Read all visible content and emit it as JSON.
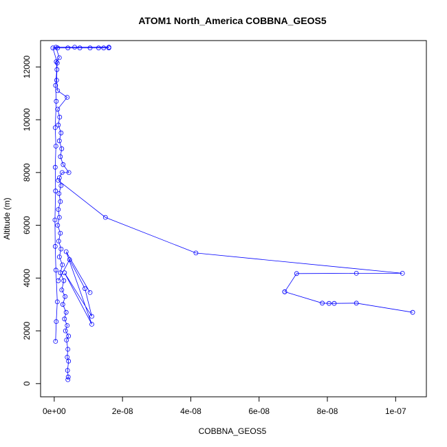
{
  "chart_data": {
    "type": "line",
    "title": "ATOM1 North_America COBBNA_GEOS5",
    "xlabel": "COBBNA_GEOS5",
    "ylabel": "Altitude (m)",
    "xlim": [
      -4e-09,
      1.09e-07
    ],
    "ylim": [
      -500,
      13000
    ],
    "x_ticks": [
      0,
      2e-08,
      4e-08,
      6e-08,
      8e-08,
      1e-07
    ],
    "x_tick_labels": [
      "0e+00",
      "2e-08",
      "4e-08",
      "6e-08",
      "8e-08",
      "1e-07"
    ],
    "y_ticks": [
      0,
      2000,
      4000,
      6000,
      8000,
      10000,
      12000
    ],
    "y_tick_labels": [
      "0",
      "2000",
      "4000",
      "6000",
      "8000",
      "10000",
      "12000"
    ],
    "grid": false,
    "legend": "none",
    "color": "#0000ff",
    "marker": "open-circle",
    "series": [
      {
        "points": [
          [
            4e-09,
            150
          ],
          [
            4.1e-09,
            250
          ],
          [
            3.9e-09,
            500
          ],
          [
            4.2e-09,
            850
          ],
          [
            3.8e-09,
            1000
          ],
          [
            4e-09,
            1300
          ],
          [
            3.6e-09,
            1650
          ],
          [
            4.2e-09,
            1800
          ],
          [
            3.3e-09,
            2000
          ],
          [
            3.8e-09,
            2200
          ],
          [
            3e-09,
            2450
          ],
          [
            3.5e-09,
            2700
          ],
          [
            2.5e-09,
            3000
          ],
          [
            3.2e-09,
            3300
          ],
          [
            2.2e-09,
            3550
          ],
          [
            2.8e-09,
            3900
          ],
          [
            1.8e-09,
            4200
          ],
          [
            2.4e-09,
            4500
          ],
          [
            1.5e-09,
            4800
          ],
          [
            2e-09,
            5100
          ],
          [
            1.3e-09,
            5400
          ],
          [
            1.8e-09,
            5700
          ],
          [
            1e-09,
            6000
          ],
          [
            1.5e-09,
            6300
          ],
          [
            1.2e-09,
            6600
          ],
          [
            1.8e-09,
            6900
          ],
          [
            1.4e-09,
            7200
          ],
          [
            2e-09,
            7500
          ],
          [
            1.5e-09,
            7800
          ],
          [
            2.3e-09,
            8000
          ],
          [
            4.3e-09,
            8000
          ],
          [
            2.6e-09,
            8300
          ],
          [
            1.8e-09,
            8600
          ],
          [
            2.2e-09,
            8900
          ],
          [
            1.5e-09,
            9200
          ],
          [
            2e-09,
            9500
          ],
          [
            1.2e-09,
            9800
          ],
          [
            1.6e-09,
            10100
          ],
          [
            1e-09,
            10400
          ],
          [
            3.8e-09,
            10850
          ],
          [
            1e-09,
            11100
          ],
          [
            7e-10,
            11500
          ],
          [
            8e-10,
            11900
          ],
          [
            6e-10,
            12200
          ],
          [
            1.5e-09,
            12350
          ],
          [
            5e-10,
            12750
          ],
          [
            6e-09,
            12750
          ],
          [
            1.6e-08,
            12750
          ]
        ]
      },
      {
        "points": [
          [
            1.2e-09,
            3900
          ],
          [
            4.5e-09,
            4700
          ],
          [
            9e-09,
            3600
          ],
          [
            1.1e-08,
            2550
          ],
          [
            3e-09,
            4200
          ],
          [
            1.1e-08,
            2250
          ],
          [
            3.5e-09,
            5000
          ],
          [
            1.05e-08,
            3450
          ]
        ]
      },
      {
        "points": [
          [
            1.2e-09,
            7700
          ],
          [
            1.5e-08,
            6300
          ],
          [
            4.15e-08,
            4950
          ],
          [
            1.02e-07,
            4180
          ],
          [
            8.85e-08,
            4180
          ],
          [
            7.1e-08,
            4170
          ],
          [
            6.75e-08,
            3480
          ]
        ]
      },
      {
        "points": [
          [
            1.05e-07,
            2700
          ],
          [
            8.85e-08,
            3050
          ],
          [
            8.2e-08,
            3040
          ],
          [
            8.05e-08,
            3040
          ],
          [
            7.85e-08,
            3050
          ],
          [
            6.75e-08,
            3480
          ]
        ]
      },
      {
        "points": [
          [
            4e-10,
            1600
          ],
          [
            6e-10,
            2350
          ],
          [
            9e-10,
            3100
          ],
          [
            5e-10,
            4300
          ],
          [
            3e-10,
            5200
          ],
          [
            2e-10,
            6200
          ],
          [
            4e-10,
            7300
          ],
          [
            3e-10,
            8200
          ],
          [
            5e-10,
            9000
          ],
          [
            3e-10,
            9700
          ],
          [
            6e-10,
            10700
          ],
          [
            4e-10,
            11300
          ],
          [
            9e-10,
            12150
          ],
          [
            -4e-10,
            12720
          ],
          [
            1e-09,
            12720
          ],
          [
            4e-09,
            12720
          ],
          [
            7.5e-09,
            12720
          ],
          [
            1.05e-08,
            12720
          ],
          [
            1.3e-08,
            12720
          ],
          [
            1.45e-08,
            12720
          ],
          [
            1.6e-08,
            12720
          ]
        ]
      }
    ]
  }
}
